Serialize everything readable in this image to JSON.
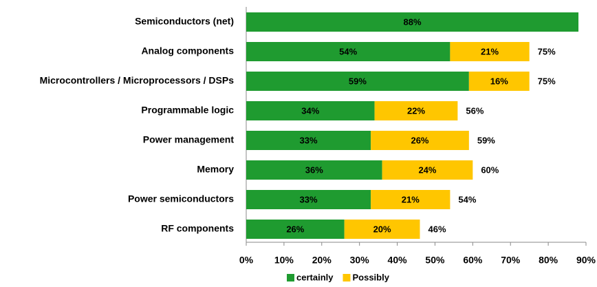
{
  "chart_data": {
    "type": "stacked-bar-horizontal",
    "categories": [
      "Semiconductors (net)",
      "Analog components",
      "Microcontrollers / Microprocessors / DSPs",
      "Programmable logic",
      "Power management",
      "Memory",
      "Power semiconductors",
      "RF components"
    ],
    "series": [
      {
        "name": "certainly",
        "color": "#1f9b30",
        "values": [
          88,
          54,
          59,
          34,
          33,
          36,
          33,
          26
        ],
        "value_labels": [
          "88%",
          "54%",
          "59%",
          "34%",
          "33%",
          "36%",
          "33%",
          "26%"
        ]
      },
      {
        "name": "Possibly",
        "color": "#ffc600",
        "values": [
          null,
          21,
          16,
          22,
          26,
          24,
          21,
          20
        ],
        "value_labels": [
          null,
          "21%",
          "16%",
          "22%",
          "26%",
          "24%",
          "21%",
          "20%"
        ]
      }
    ],
    "totals": {
      "values": [
        null,
        75,
        75,
        56,
        59,
        60,
        54,
        46
      ],
      "value_labels": [
        null,
        "75%",
        "75%",
        "56%",
        "59%",
        "60%",
        "54%",
        "46%"
      ]
    },
    "xlim": [
      0,
      90
    ],
    "xticks": [
      {
        "value": 0,
        "label": "0%"
      },
      {
        "value": 10,
        "label": "10%"
      },
      {
        "value": 20,
        "label": "20%"
      },
      {
        "value": 30,
        "label": "30%"
      },
      {
        "value": 40,
        "label": "40%"
      },
      {
        "value": 50,
        "label": "50%"
      },
      {
        "value": 60,
        "label": "60%"
      },
      {
        "value": 70,
        "label": "70%"
      },
      {
        "value": 80,
        "label": "80%"
      },
      {
        "value": 90,
        "label": "90%"
      }
    ],
    "legend": "bottom"
  }
}
